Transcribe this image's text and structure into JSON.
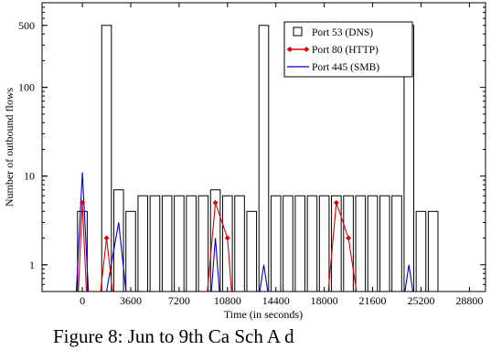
{
  "chart_data": {
    "type": "bar",
    "xlabel": "Time (in seconds)",
    "ylabel": "Number of outbound flows",
    "xlim": [
      -3000,
      30000
    ],
    "ylim": [
      0.5,
      900
    ],
    "yscale": "log",
    "grid": false,
    "legend_position": "top-right",
    "x_ticks": [
      0,
      3600,
      7200,
      10800,
      14400,
      18000,
      21600,
      25200,
      28800
    ],
    "y_ticks": [
      1,
      10,
      100,
      500
    ],
    "bar_width": 720,
    "series": [
      {
        "name": "Port 53 (DNS)",
        "style": "bar-outline",
        "color": "#000000",
        "x": [
          0,
          1800,
          2700,
          3600,
          4500,
          5400,
          6300,
          7200,
          8100,
          9000,
          9900,
          10800,
          11700,
          12600,
          13500,
          14400,
          15300,
          16200,
          17100,
          18000,
          18900,
          19800,
          20700,
          21600,
          22500,
          23400,
          24300,
          25200,
          26100
        ],
        "values": [
          4,
          500,
          7,
          4,
          6,
          6,
          6,
          6,
          6,
          6,
          7,
          6,
          6,
          4,
          500,
          6,
          6,
          6,
          6,
          6,
          6,
          6,
          6,
          6,
          6,
          6,
          500,
          4,
          4
        ]
      },
      {
        "name": "Port 80 (HTTP)",
        "style": "line-marker",
        "color": "#e00000",
        "groups": [
          {
            "x": [
              -300,
              0,
              300
            ],
            "values": [
              0.5,
              5,
              0.5
            ]
          },
          {
            "x": [
              1350,
              1800,
              2250
            ],
            "values": [
              0.5,
              2,
              0.5
            ]
          },
          {
            "x": [
              9300,
              9900,
              10800,
              11100
            ],
            "values": [
              0.5,
              5,
              2,
              0.5
            ]
          },
          {
            "x": [
              18300,
              18900,
              19800,
              20400
            ],
            "values": [
              0.5,
              5,
              2,
              0.5
            ]
          }
        ],
        "markers": {
          "x": [
            0,
            1800,
            9900,
            10800,
            18900,
            19800
          ],
          "values": [
            5,
            2,
            5,
            2,
            5,
            2
          ]
        }
      },
      {
        "name": "Port 445 (SMB)",
        "style": "line",
        "color": "#0000cc",
        "groups": [
          {
            "x": [
              -450,
              0,
              450
            ],
            "values": [
              0.5,
              11,
              0.5
            ]
          },
          {
            "x": [
              1800,
              2700,
              3250
            ],
            "values": [
              0.5,
              3,
              0.5
            ]
          },
          {
            "x": [
              9600,
              9900,
              10200
            ],
            "values": [
              0.5,
              2,
              0.5
            ]
          },
          {
            "x": [
              13200,
              13500,
              13800
            ],
            "values": [
              0.5,
              1,
              0.5
            ]
          },
          {
            "x": [
              24000,
              24300,
              24600
            ],
            "values": [
              0.5,
              1,
              0.5
            ]
          }
        ]
      }
    ]
  },
  "caption": "Figure 8: Jun to 9th    Ca  Sch   A     d"
}
